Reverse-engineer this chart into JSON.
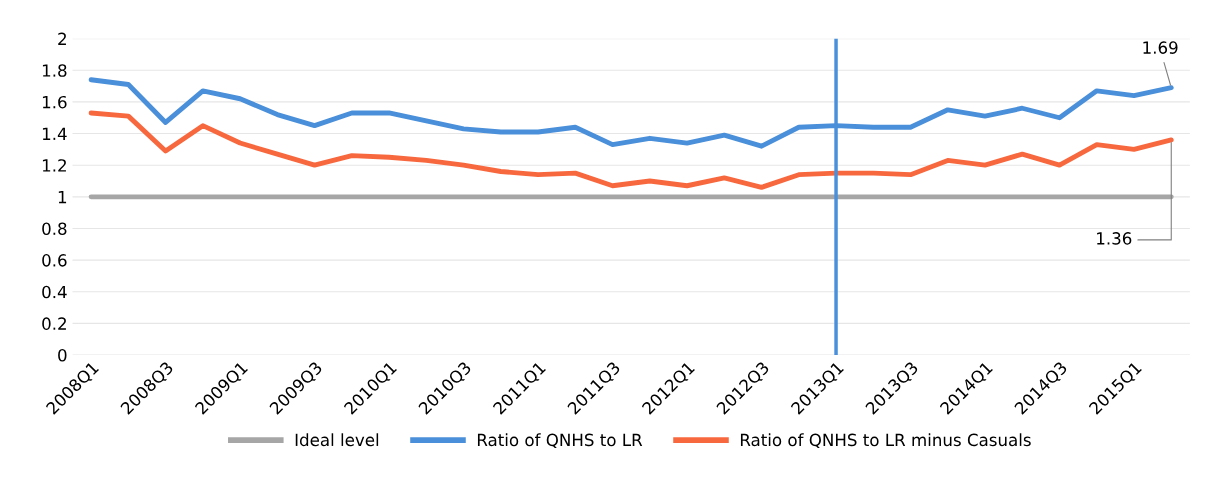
{
  "chart_data": {
    "type": "line",
    "categories": [
      "2008Q1",
      null,
      "2008Q3",
      null,
      "2009Q1",
      null,
      "2009Q3",
      null,
      "2010Q1",
      null,
      "2010Q3",
      null,
      "2011Q1",
      null,
      "2011Q3",
      null,
      "2012Q1",
      null,
      "2012Q3",
      null,
      "2013Q1",
      null,
      "2013Q3",
      null,
      "2014Q1",
      null,
      "2014Q3",
      null,
      "2015Q1",
      null
    ],
    "series": [
      {
        "name": "Ideal level",
        "color": "#a6a6a6",
        "values": [
          1,
          1,
          1,
          1,
          1,
          1,
          1,
          1,
          1,
          1,
          1,
          1,
          1,
          1,
          1,
          1,
          1,
          1,
          1,
          1,
          1,
          1,
          1,
          1,
          1,
          1,
          1,
          1,
          1,
          1
        ]
      },
      {
        "name": "Ratio of QNHS to LR",
        "color": "#4a8fd9",
        "values": [
          1.74,
          1.71,
          1.47,
          1.67,
          1.62,
          1.52,
          1.45,
          1.53,
          1.53,
          1.48,
          1.43,
          1.41,
          1.41,
          1.44,
          1.33,
          1.37,
          1.34,
          1.39,
          1.32,
          1.44,
          1.45,
          1.44,
          1.44,
          1.55,
          1.51,
          1.56,
          1.5,
          1.67,
          1.64,
          1.69
        ],
        "value_labels": [
          null,
          null,
          null,
          null,
          null,
          null,
          null,
          null,
          null,
          null,
          null,
          null,
          null,
          null,
          null,
          null,
          null,
          null,
          null,
          null,
          null,
          null,
          null,
          null,
          null,
          null,
          null,
          null,
          null,
          "1.69"
        ]
      },
      {
        "name": "Ratio of QNHS to LR minus Casuals",
        "color": "#f8683f",
        "values": [
          1.53,
          1.51,
          1.29,
          1.45,
          1.34,
          1.27,
          1.2,
          1.26,
          1.25,
          1.23,
          1.2,
          1.16,
          1.14,
          1.15,
          1.07,
          1.1,
          1.07,
          1.12,
          1.06,
          1.14,
          1.15,
          1.15,
          1.14,
          1.23,
          1.2,
          1.27,
          1.2,
          1.33,
          1.3,
          1.36
        ],
        "value_labels": [
          null,
          null,
          null,
          null,
          null,
          null,
          null,
          null,
          null,
          null,
          null,
          null,
          null,
          null,
          null,
          null,
          null,
          null,
          null,
          null,
          null,
          null,
          null,
          null,
          null,
          null,
          null,
          null,
          null,
          "1.36"
        ]
      }
    ],
    "ylim": [
      0,
      2
    ],
    "yticks": [
      0,
      0.2,
      0.4,
      0.6,
      0.8,
      1,
      1.2,
      1.4,
      1.6,
      1.8,
      2
    ],
    "grid": "y",
    "legend": "bottom",
    "marker": "none",
    "line_style": "solid",
    "ref_lines": [
      {
        "axis": "x",
        "value": "2013Q1",
        "color": "#4a8fd9"
      }
    ]
  }
}
